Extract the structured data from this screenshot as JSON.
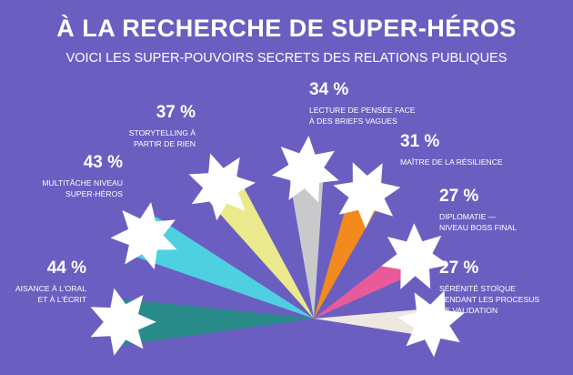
{
  "chart_data": {
    "type": "radial-bar",
    "title": "À LA RECHERCHE DE SUPER-HÉROS",
    "subtitle": "VOICI LES SUPER-POUVOIRS SECRETS DES RELATIONS PUBLIQUES",
    "categories": [
      "AISANCE À L'ORAL\nET À L'ÉCRIT",
      "MULTITÂCHE NIVEAU\nSUPER-HÉROS",
      "STORYTELLING À\nPARTIR DE RIEN",
      "LECTURE DE PENSÉE FACE\nÀ DES BRIEFS VAGUES",
      "MAÎTRE DE LA RÉSILIENCE",
      "DIPLOMATIE —\nNIVEAU BOSS FINAL",
      "SÉRÉNITÉ STOÏQUE\nPENDANT LES PROCESUS\nDE VALIDATION"
    ],
    "values": [
      44,
      43,
      37,
      34,
      31,
      27,
      27
    ],
    "value_labels": [
      "44 %",
      "43 %",
      "37 %",
      "34 %",
      "31 %",
      "27 %",
      "27 %"
    ],
    "colors": [
      "#2a8c8a",
      "#4fd0e0",
      "#ece98c",
      "#c9c9cc",
      "#f28a1e",
      "#e85a9a",
      "#efe8e0"
    ]
  }
}
